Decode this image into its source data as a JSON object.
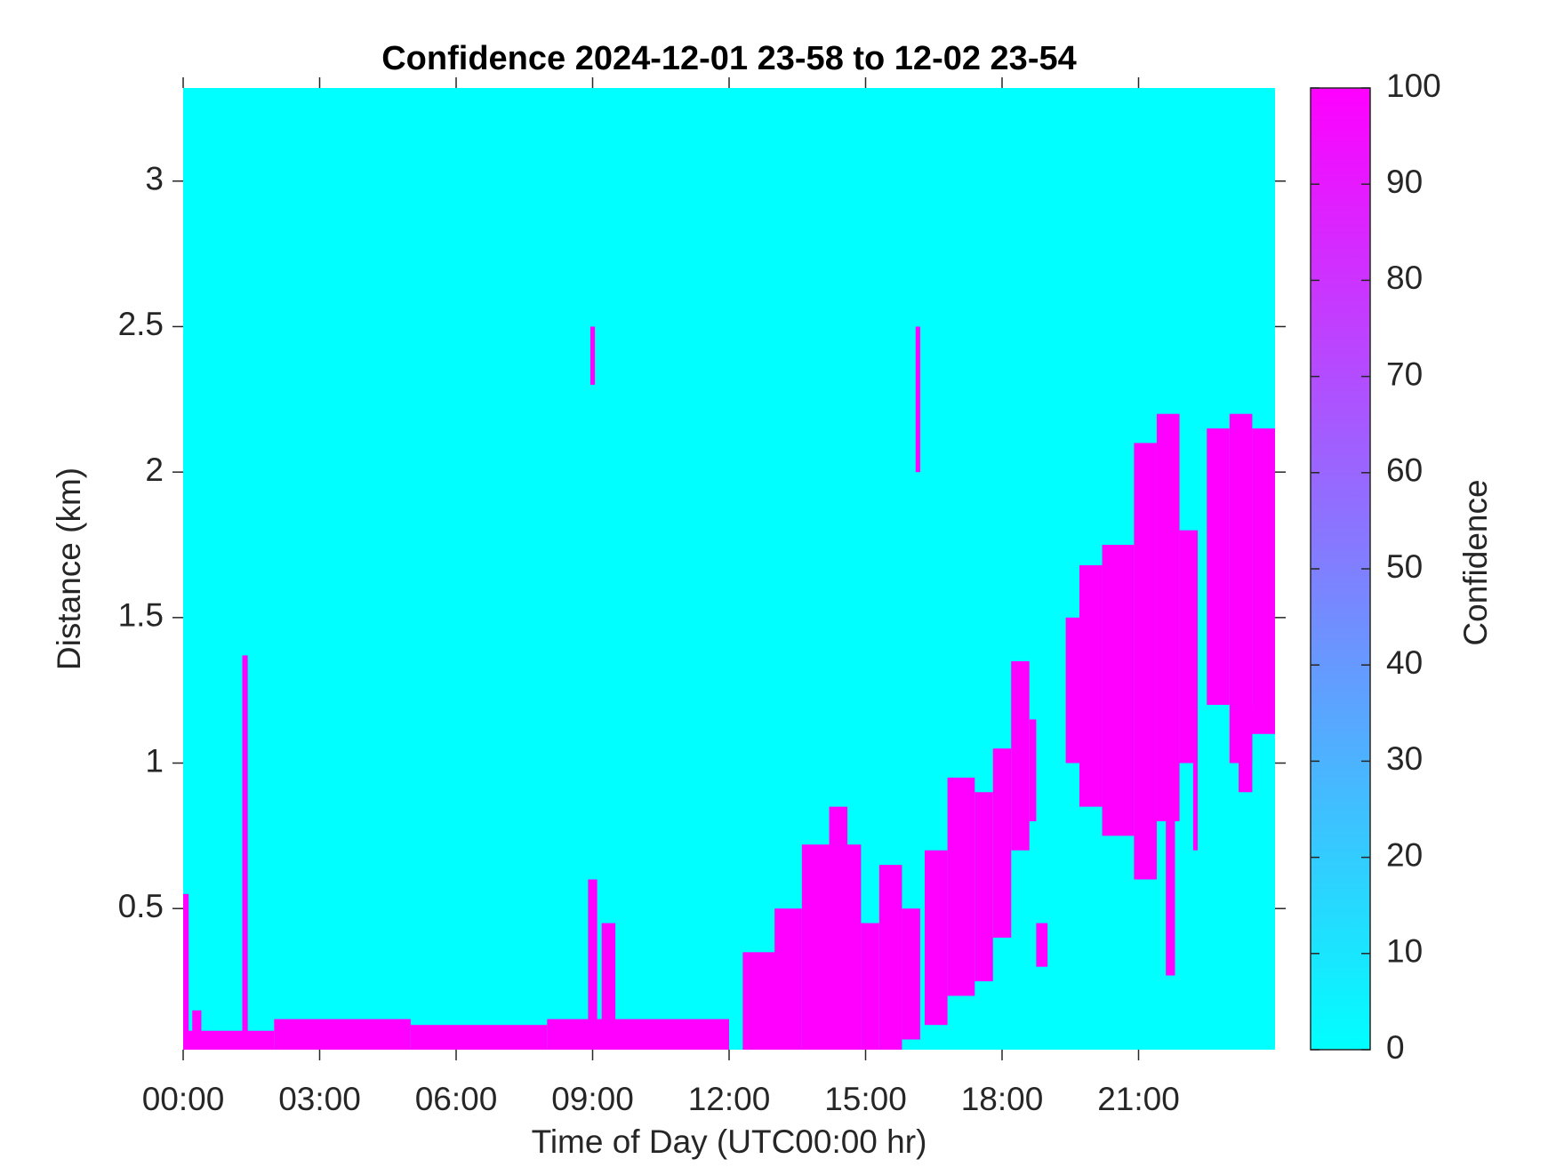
{
  "chart_data": {
    "type": "heatmap",
    "title": "Confidence 2024-12-01 23-58 to 12-02 23-54",
    "x_label": "Time of Day (UTC00:00 hr)",
    "y_label": "Distance (km)",
    "colorbar_label": "Confidence",
    "colormap": [
      "#00ffff",
      "#ff00ff"
    ],
    "background_value": 0,
    "xlim": [
      0,
      24
    ],
    "xticks": [
      {
        "value": 0,
        "label": "00:00"
      },
      {
        "value": 3,
        "label": "03:00"
      },
      {
        "value": 6,
        "label": "06:00"
      },
      {
        "value": 9,
        "label": "09:00"
      },
      {
        "value": 12,
        "label": "12:00"
      },
      {
        "value": 15,
        "label": "15:00"
      },
      {
        "value": 18,
        "label": "18:00"
      },
      {
        "value": 21,
        "label": "21:00"
      }
    ],
    "ylim": [
      0.015,
      3.32
    ],
    "yticks": [
      0.5,
      1,
      1.5,
      2,
      2.5,
      3
    ],
    "clim": [
      0,
      100
    ],
    "cticks": [
      0,
      10,
      20,
      30,
      40,
      50,
      60,
      70,
      80,
      90,
      100
    ],
    "regions": [
      {
        "x": [
          0,
          0.12
        ],
        "y": [
          0.015,
          0.55
        ],
        "value": 100
      },
      {
        "x": [
          1.3,
          1.42
        ],
        "y": [
          0.015,
          1.37
        ],
        "value": 100
      },
      {
        "x": [
          0,
          2
        ],
        "y": [
          0.015,
          0.08
        ],
        "value": 100
      },
      {
        "x": [
          0.2,
          0.4
        ],
        "y": [
          0.015,
          0.15
        ],
        "value": 100
      },
      {
        "x": [
          2,
          5
        ],
        "y": [
          0.015,
          0.12
        ],
        "value": 100
      },
      {
        "x": [
          5,
          8
        ],
        "y": [
          0.015,
          0.1
        ],
        "value": 100
      },
      {
        "x": [
          8,
          12
        ],
        "y": [
          0.015,
          0.12
        ],
        "value": 100
      },
      {
        "x": [
          8.9,
          9.1
        ],
        "y": [
          0.015,
          0.6
        ],
        "value": 100
      },
      {
        "x": [
          9.2,
          9.5
        ],
        "y": [
          0.1,
          0.45
        ],
        "value": 100
      },
      {
        "x": [
          8.95,
          9.05
        ],
        "y": [
          2.3,
          2.5
        ],
        "value": 100
      },
      {
        "x": [
          12.3,
          13.3
        ],
        "y": [
          0.015,
          0.35
        ],
        "value": 100
      },
      {
        "x": [
          13.0,
          13.6
        ],
        "y": [
          0.015,
          0.5
        ],
        "value": 100
      },
      {
        "x": [
          13.6,
          14.9
        ],
        "y": [
          0.015,
          0.72
        ],
        "value": 100
      },
      {
        "x": [
          14.2,
          14.6
        ],
        "y": [
          0.6,
          0.85
        ],
        "value": 100
      },
      {
        "x": [
          14.9,
          15.3
        ],
        "y": [
          0.015,
          0.45
        ],
        "value": 100
      },
      {
        "x": [
          15.3,
          15.8
        ],
        "y": [
          0.015,
          0.65
        ],
        "value": 100
      },
      {
        "x": [
          15.8,
          16.2
        ],
        "y": [
          0.05,
          0.5
        ],
        "value": 100
      },
      {
        "x": [
          16.1,
          16.2
        ],
        "y": [
          2.0,
          2.5
        ],
        "value": 100
      },
      {
        "x": [
          16.3,
          16.8
        ],
        "y": [
          0.1,
          0.7
        ],
        "value": 100
      },
      {
        "x": [
          16.8,
          17.4
        ],
        "y": [
          0.2,
          0.95
        ],
        "value": 100
      },
      {
        "x": [
          17.4,
          17.8
        ],
        "y": [
          0.25,
          0.9
        ],
        "value": 100
      },
      {
        "x": [
          17.8,
          18.2
        ],
        "y": [
          0.4,
          1.05
        ],
        "value": 100
      },
      {
        "x": [
          18.2,
          18.6
        ],
        "y": [
          0.7,
          1.35
        ],
        "value": 100
      },
      {
        "x": [
          18.6,
          18.75
        ],
        "y": [
          0.8,
          1.15
        ],
        "value": 100
      },
      {
        "x": [
          18.75,
          19
        ],
        "y": [
          0.3,
          0.45
        ],
        "value": 100
      },
      {
        "x": [
          19.4,
          19.9
        ],
        "y": [
          1.0,
          1.5
        ],
        "value": 100
      },
      {
        "x": [
          19.7,
          20.2
        ],
        "y": [
          0.85,
          1.68
        ],
        "value": 100
      },
      {
        "x": [
          20.2,
          20.9
        ],
        "y": [
          0.75,
          1.75
        ],
        "value": 100
      },
      {
        "x": [
          20.9,
          21.4
        ],
        "y": [
          0.6,
          2.1
        ],
        "value": 100
      },
      {
        "x": [
          21.4,
          21.9
        ],
        "y": [
          0.8,
          2.2
        ],
        "value": 100
      },
      {
        "x": [
          21.6,
          21.8
        ],
        "y": [
          0.27,
          0.8
        ],
        "value": 100
      },
      {
        "x": [
          21.9,
          22.3
        ],
        "y": [
          1.0,
          1.8
        ],
        "value": 100
      },
      {
        "x": [
          22.2,
          22.3
        ],
        "y": [
          0.7,
          1.0
        ],
        "value": 100
      },
      {
        "x": [
          22.5,
          23.0
        ],
        "y": [
          1.2,
          2.15
        ],
        "value": 100
      },
      {
        "x": [
          23.0,
          23.5
        ],
        "y": [
          1.0,
          2.2
        ],
        "value": 100
      },
      {
        "x": [
          23.2,
          23.5
        ],
        "y": [
          0.9,
          1.2
        ],
        "value": 100
      },
      {
        "x": [
          23.5,
          24
        ],
        "y": [
          1.1,
          2.15
        ],
        "value": 100
      }
    ]
  }
}
